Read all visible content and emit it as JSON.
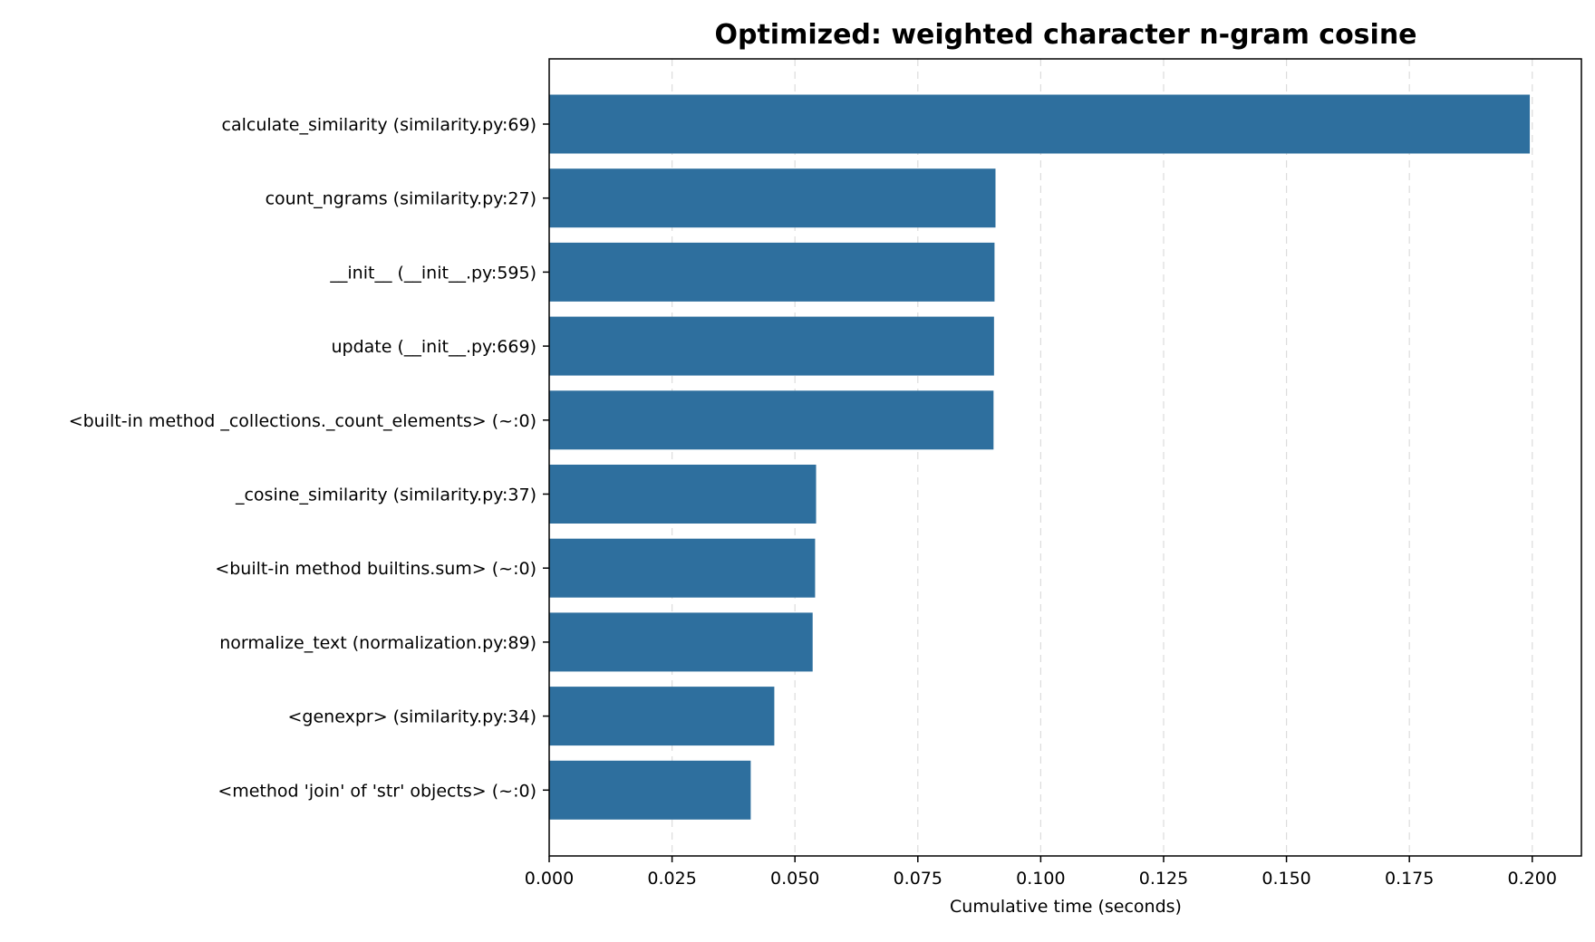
{
  "chart_data": {
    "type": "bar",
    "orientation": "horizontal",
    "title": "Optimized: weighted character n-gram cosine",
    "xlabel": "Cumulative time (seconds)",
    "ylabel": "",
    "xlim": [
      0,
      0.21
    ],
    "xticks": [
      0.0,
      0.025,
      0.05,
      0.075,
      0.1,
      0.125,
      0.15,
      0.175,
      0.2
    ],
    "xtick_labels": [
      "0.000",
      "0.025",
      "0.050",
      "0.075",
      "0.100",
      "0.125",
      "0.150",
      "0.175",
      "0.200"
    ],
    "grid": "x, dashed",
    "bar_color": "#2e6f9e",
    "categories": [
      "calculate_similarity (similarity.py:69)",
      "count_ngrams (similarity.py:27)",
      "__init__ (__init__.py:595)",
      "update (__init__.py:669)",
      "<built-in method _collections._count_elements> (~:0)",
      "_cosine_similarity (similarity.py:37)",
      "<built-in method builtins.sum> (~:0)",
      "normalize_text (normalization.py:89)",
      "<genexpr> (similarity.py:34)",
      "<method 'join' of 'str' objects> (~:0)"
    ],
    "values": [
      0.1995,
      0.0908,
      0.0906,
      0.0905,
      0.0904,
      0.0543,
      0.0541,
      0.0536,
      0.0458,
      0.041
    ]
  }
}
